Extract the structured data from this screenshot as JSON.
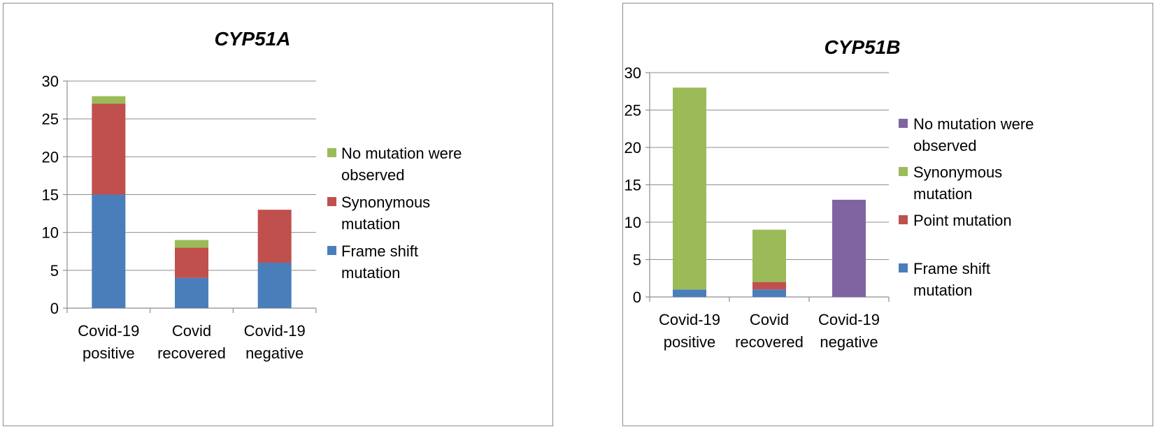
{
  "chart_data": [
    {
      "type": "bar",
      "stacked": true,
      "title": "CYP51A",
      "xlabel": "",
      "ylabel": "",
      "ylim": [
        0,
        30
      ],
      "yticks": [
        0,
        5,
        10,
        15,
        20,
        25,
        30
      ],
      "grid": true,
      "legend_position": "right",
      "categories": [
        [
          "Covid-19",
          "positive"
        ],
        [
          "Covid",
          "recovered"
        ],
        [
          "Covid-19",
          "negative"
        ]
      ],
      "series": [
        {
          "name": "Frame shift mutation",
          "legend_lines": [
            "Frame shift",
            "mutation"
          ],
          "color": "#4a7ebb",
          "values": [
            15,
            4,
            6
          ]
        },
        {
          "name": "Synonymous mutation",
          "legend_lines": [
            "Synonymous",
            "mutation"
          ],
          "color": "#c0504d",
          "values": [
            12,
            4,
            7
          ]
        },
        {
          "name": "No mutation were observed",
          "legend_lines": [
            "No mutation were",
            "observed"
          ],
          "color": "#9bbb59",
          "values": [
            1,
            1,
            0
          ]
        }
      ]
    },
    {
      "type": "bar",
      "stacked": true,
      "title": "CYP51B",
      "xlabel": "",
      "ylabel": "",
      "ylim": [
        0,
        30
      ],
      "yticks": [
        0,
        5,
        10,
        15,
        20,
        25,
        30
      ],
      "grid": true,
      "legend_position": "right",
      "categories": [
        [
          "Covid-19",
          "positive"
        ],
        [
          "Covid",
          "recovered"
        ],
        [
          "Covid-19",
          "negative"
        ]
      ],
      "series": [
        {
          "name": "Frame shift mutation",
          "legend_lines": [
            "Frame shift",
            "mutation"
          ],
          "color": "#4a7ebb",
          "values": [
            1,
            1,
            0
          ]
        },
        {
          "name": "Point mutation",
          "legend_lines": [
            "Point mutation"
          ],
          "color": "#c0504d",
          "values": [
            0,
            1,
            0
          ]
        },
        {
          "name": "Synonymous mutation",
          "legend_lines": [
            "Synonymous",
            "mutation"
          ],
          "color": "#9bbb59",
          "values": [
            27,
            7,
            0
          ]
        },
        {
          "name": "No mutation were observed",
          "legend_lines": [
            "No mutation were",
            "observed"
          ],
          "color": "#8064a2",
          "values": [
            0,
            0,
            13
          ]
        }
      ]
    }
  ]
}
